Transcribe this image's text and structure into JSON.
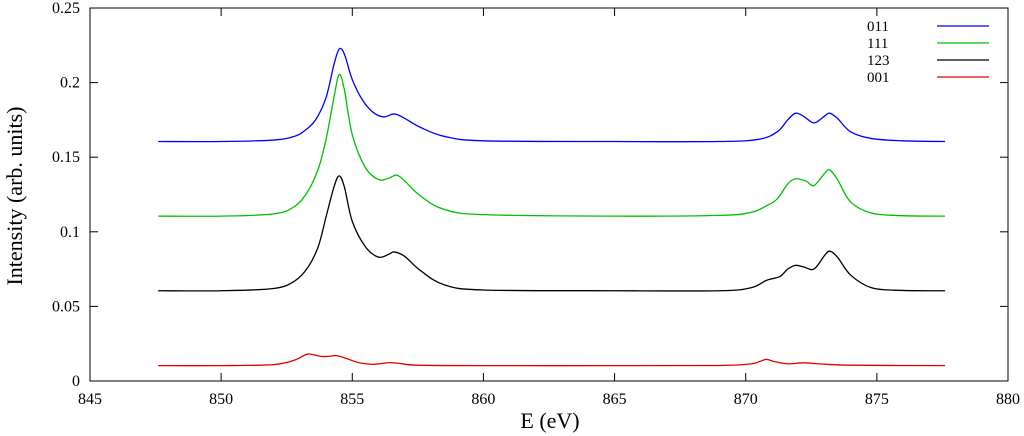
{
  "chart_data": {
    "type": "line",
    "xlabel": "E (eV)",
    "ylabel": "Intensity (arb. units)",
    "xlim": [
      845,
      880
    ],
    "ylim": [
      0,
      0.25
    ],
    "xticks": [
      "845",
      "850",
      "855",
      "860",
      "865",
      "870",
      "875",
      "880"
    ],
    "yticks": [
      "0",
      "0.05",
      "0.1",
      "0.15",
      "0.2",
      "0.25"
    ],
    "grid": false,
    "legend_position": "top-right",
    "series": [
      {
        "name": "011",
        "color": "#0000ff",
        "points": [
          [
            847.6,
            0.1605
          ],
          [
            850,
            0.1605
          ],
          [
            852,
            0.1615
          ],
          [
            852.8,
            0.164
          ],
          [
            853.2,
            0.168
          ],
          [
            853.6,
            0.175
          ],
          [
            854.0,
            0.19
          ],
          [
            854.3,
            0.212
          ],
          [
            854.5,
            0.2225
          ],
          [
            854.7,
            0.219
          ],
          [
            855.0,
            0.202
          ],
          [
            855.4,
            0.188
          ],
          [
            855.8,
            0.18
          ],
          [
            856.2,
            0.177
          ],
          [
            856.6,
            0.179
          ],
          [
            857.0,
            0.176
          ],
          [
            857.6,
            0.17
          ],
          [
            858.5,
            0.164
          ],
          [
            860,
            0.161
          ],
          [
            865,
            0.1605
          ],
          [
            869,
            0.1605
          ],
          [
            870.5,
            0.162
          ],
          [
            871.2,
            0.167
          ],
          [
            871.6,
            0.175
          ],
          [
            871.9,
            0.1795
          ],
          [
            872.2,
            0.1775
          ],
          [
            872.6,
            0.173
          ],
          [
            873.0,
            0.1775
          ],
          [
            873.2,
            0.1795
          ],
          [
            873.5,
            0.176
          ],
          [
            874.0,
            0.167
          ],
          [
            874.8,
            0.1625
          ],
          [
            876,
            0.161
          ],
          [
            877.6,
            0.1605
          ]
        ]
      },
      {
        "name": "111",
        "color": "#00c000",
        "points": [
          [
            847.6,
            0.1105
          ],
          [
            850,
            0.1105
          ],
          [
            852,
            0.112
          ],
          [
            852.8,
            0.117
          ],
          [
            853.3,
            0.127
          ],
          [
            853.7,
            0.142
          ],
          [
            854.0,
            0.162
          ],
          [
            854.3,
            0.19
          ],
          [
            854.5,
            0.2055
          ],
          [
            854.7,
            0.195
          ],
          [
            855.0,
            0.165
          ],
          [
            855.5,
            0.143
          ],
          [
            856.0,
            0.135
          ],
          [
            856.4,
            0.136
          ],
          [
            856.7,
            0.138
          ],
          [
            857.0,
            0.134
          ],
          [
            857.6,
            0.124
          ],
          [
            858.5,
            0.115
          ],
          [
            860,
            0.1115
          ],
          [
            865,
            0.1105
          ],
          [
            869,
            0.111
          ],
          [
            870.2,
            0.113
          ],
          [
            870.8,
            0.1175
          ],
          [
            871.2,
            0.122
          ],
          [
            871.6,
            0.132
          ],
          [
            871.9,
            0.1355
          ],
          [
            872.3,
            0.134
          ],
          [
            872.6,
            0.131
          ],
          [
            873.0,
            0.139
          ],
          [
            873.2,
            0.1415
          ],
          [
            873.5,
            0.135
          ],
          [
            874.0,
            0.12
          ],
          [
            874.8,
            0.1125
          ],
          [
            876,
            0.1108
          ],
          [
            877.6,
            0.1105
          ]
        ]
      },
      {
        "name": "123",
        "color": "#000000",
        "points": [
          [
            847.6,
            0.0605
          ],
          [
            850,
            0.0605
          ],
          [
            852,
            0.062
          ],
          [
            852.8,
            0.067
          ],
          [
            853.3,
            0.076
          ],
          [
            853.7,
            0.09
          ],
          [
            854.0,
            0.11
          ],
          [
            854.3,
            0.13
          ],
          [
            854.5,
            0.1375
          ],
          [
            854.7,
            0.13
          ],
          [
            855.0,
            0.107
          ],
          [
            855.5,
            0.09
          ],
          [
            856.0,
            0.083
          ],
          [
            856.4,
            0.085
          ],
          [
            856.6,
            0.0865
          ],
          [
            857.0,
            0.0835
          ],
          [
            857.6,
            0.074
          ],
          [
            858.5,
            0.0645
          ],
          [
            860,
            0.061
          ],
          [
            865,
            0.0605
          ],
          [
            869,
            0.0605
          ],
          [
            870.2,
            0.0625
          ],
          [
            870.8,
            0.0675
          ],
          [
            871.3,
            0.07
          ],
          [
            871.6,
            0.075
          ],
          [
            871.9,
            0.0775
          ],
          [
            872.2,
            0.0765
          ],
          [
            872.6,
            0.075
          ],
          [
            873.0,
            0.084
          ],
          [
            873.2,
            0.087
          ],
          [
            873.5,
            0.083
          ],
          [
            874.0,
            0.071
          ],
          [
            874.8,
            0.0625
          ],
          [
            876,
            0.0607
          ],
          [
            877.6,
            0.0605
          ]
        ]
      },
      {
        "name": "001",
        "color": "#e00000",
        "points": [
          [
            847.6,
            0.0103
          ],
          [
            850,
            0.0103
          ],
          [
            852,
            0.011
          ],
          [
            852.8,
            0.014
          ],
          [
            853.2,
            0.0175
          ],
          [
            853.4,
            0.018
          ],
          [
            853.8,
            0.0165
          ],
          [
            854.1,
            0.0165
          ],
          [
            854.4,
            0.017
          ],
          [
            854.8,
            0.015
          ],
          [
            855.2,
            0.0125
          ],
          [
            855.8,
            0.0112
          ],
          [
            856.4,
            0.0123
          ],
          [
            856.8,
            0.0118
          ],
          [
            857.5,
            0.0106
          ],
          [
            860,
            0.0103
          ],
          [
            865,
            0.0103
          ],
          [
            869,
            0.0104
          ],
          [
            870.2,
            0.0115
          ],
          [
            870.6,
            0.0135
          ],
          [
            870.8,
            0.0145
          ],
          [
            871.1,
            0.013
          ],
          [
            871.6,
            0.0115
          ],
          [
            872.2,
            0.0122
          ],
          [
            872.8,
            0.0115
          ],
          [
            874,
            0.0106
          ],
          [
            877.6,
            0.0103
          ]
        ]
      }
    ]
  }
}
